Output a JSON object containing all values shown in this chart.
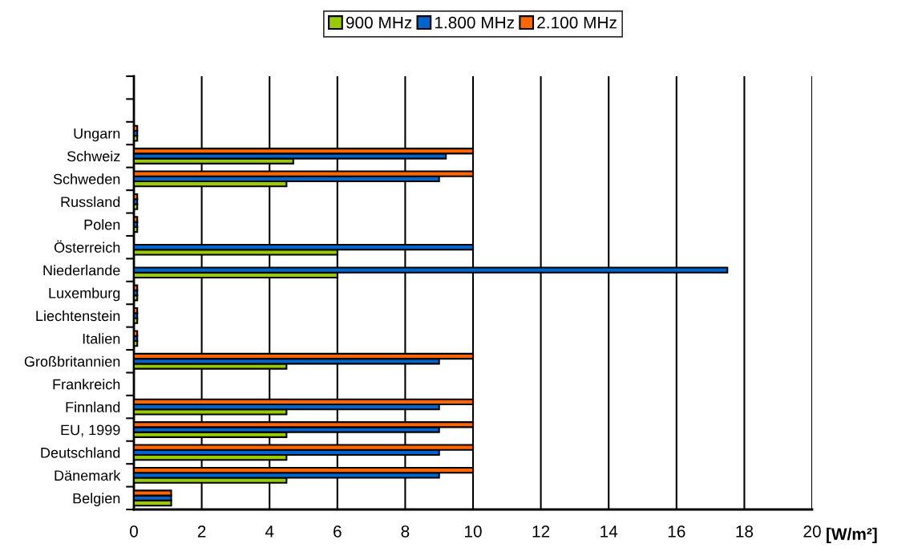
{
  "chart_data": {
    "type": "bar",
    "orientation": "horizontal",
    "xlabel": "[W/m²]",
    "categories": [
      null,
      null,
      "Ungarn",
      "Schweiz",
      "Schweden",
      "Russland",
      "Polen",
      "Österreich",
      "Niederlande",
      "Luxemburg",
      "Liechtenstein",
      "Italien",
      "Großbritannien",
      "Frankreich",
      "Finnland",
      "EU, 1999",
      "Deutschland",
      "Dänemark",
      "Belgien"
    ],
    "series": [
      {
        "name": "900 MHz",
        "color": "#99cc00",
        "values": [
          null,
          null,
          0.1,
          4.7,
          4.5,
          0.1,
          0.1,
          6,
          6,
          0.1,
          0.1,
          0.1,
          4.5,
          null,
          4.5,
          4.5,
          4.5,
          4.5,
          1.1
        ]
      },
      {
        "name": "1.800 MHz",
        "color": "#0066cc",
        "values": [
          null,
          null,
          0.1,
          9.2,
          9,
          0.1,
          0.1,
          10,
          17.5,
          0.1,
          0.1,
          0.1,
          9,
          null,
          9,
          9,
          9,
          9,
          1.1
        ]
      },
      {
        "name": "2.100 MHz",
        "color": "#ff6600",
        "values": [
          null,
          null,
          0.1,
          10,
          10,
          0.1,
          0.1,
          null,
          null,
          0.1,
          0.1,
          0.1,
          10,
          null,
          10,
          10,
          10,
          10,
          1.1
        ]
      }
    ],
    "xlim": [
      0,
      20
    ],
    "xticks": [
      0,
      2,
      4,
      6,
      8,
      10,
      12,
      14,
      16,
      18,
      20
    ],
    "grid": "x",
    "legend": "top"
  }
}
